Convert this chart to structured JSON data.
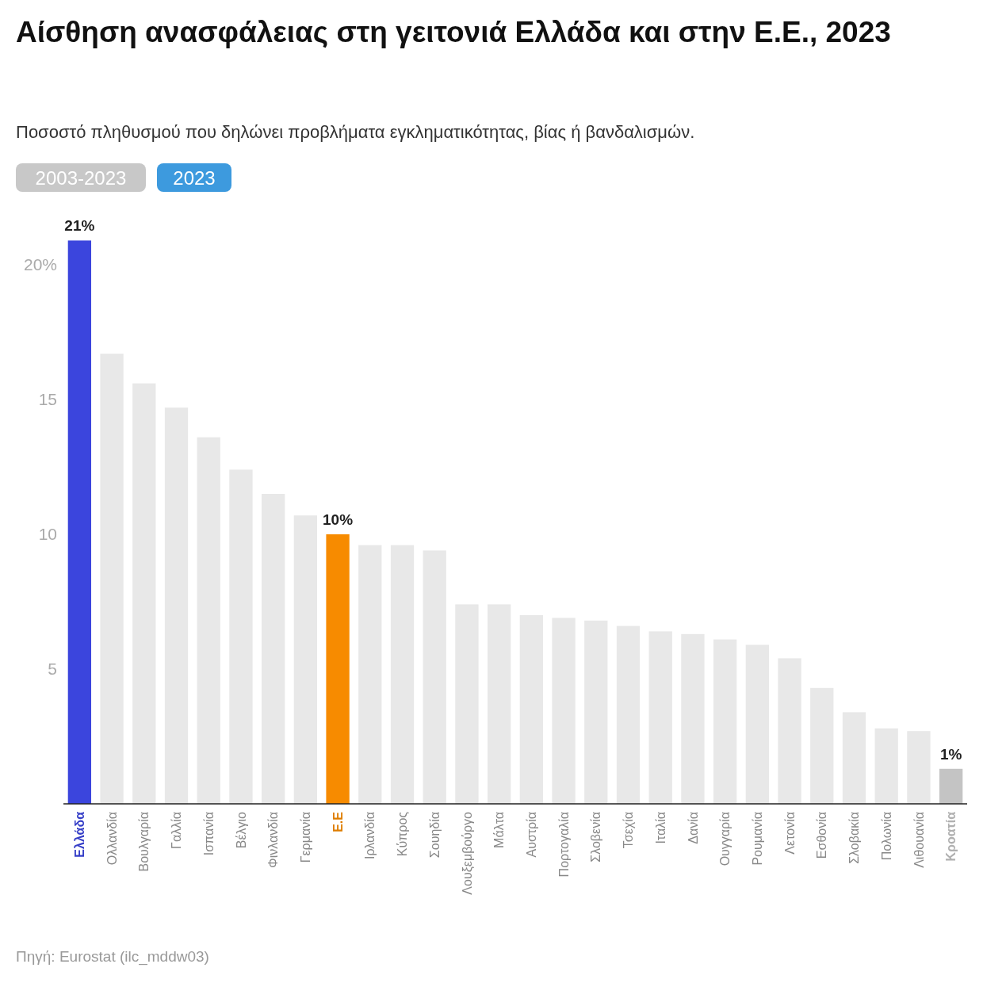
{
  "chart_data": {
    "type": "bar",
    "title": "Αίσθηση ανασφάλειας στη γειτονιά Ελλάδα και στην Ε.Ε., 2023",
    "subtitle": "Ποσοστό πληθυσμού που δηλώνει προβλήματα εγκληματικότητας, βίας ή βανδαλισμών.",
    "categories": [
      "Ελλάδα",
      "Ολλανδία",
      "Βουλγαρία",
      "Γαλλία",
      "Ισπανία",
      "Βέλγιο",
      "Φινλανδία",
      "Γερμανία",
      "Ε.Ε",
      "Ιρλανδία",
      "Κύπρος",
      "Σουηδία",
      "Λουξεμβούργο",
      "Μάλτα",
      "Αυστρία",
      "Πορτογαλία",
      "Σλοβενία",
      "Τσεχία",
      "Ιταλία",
      "Δανία",
      "Ουγγαρία",
      "Ρουμανία",
      "Λετονία",
      "Εσθονία",
      "Σλοβακία",
      "Πολωνία",
      "Λιθουανία",
      "Κροατία"
    ],
    "values": [
      20.9,
      16.7,
      15.6,
      14.7,
      13.6,
      12.4,
      11.5,
      10.7,
      10.0,
      9.6,
      9.6,
      9.4,
      7.4,
      7.4,
      7.0,
      6.9,
      6.8,
      6.6,
      6.4,
      6.3,
      6.1,
      5.9,
      5.4,
      4.3,
      3.4,
      2.8,
      2.7,
      1.3
    ],
    "colors": [
      "#3b45dd",
      "#e8e8e8",
      "#e8e8e8",
      "#e8e8e8",
      "#e8e8e8",
      "#e8e8e8",
      "#e8e8e8",
      "#e8e8e8",
      "#f78b00",
      "#e8e8e8",
      "#e8e8e8",
      "#e8e8e8",
      "#e8e8e8",
      "#e8e8e8",
      "#e8e8e8",
      "#e8e8e8",
      "#e8e8e8",
      "#e8e8e8",
      "#e8e8e8",
      "#e8e8e8",
      "#e8e8e8",
      "#e8e8e8",
      "#e8e8e8",
      "#e8e8e8",
      "#e8e8e8",
      "#e8e8e8",
      "#e8e8e8",
      "#c4c4c4"
    ],
    "value_labels": [
      "21%",
      null,
      null,
      null,
      null,
      null,
      null,
      null,
      "10%",
      null,
      null,
      null,
      null,
      null,
      null,
      null,
      null,
      null,
      null,
      null,
      null,
      null,
      null,
      null,
      null,
      null,
      null,
      "1%"
    ],
    "ylim": [
      0,
      21
    ],
    "yticks": [
      5,
      10,
      15,
      {
        "value": 20,
        "label": "20%"
      }
    ],
    "grid": false,
    "annotations": [
      "2003-2023",
      "2023",
      "Πηγή: Eurostat (ilc_mddw03)"
    ]
  }
}
